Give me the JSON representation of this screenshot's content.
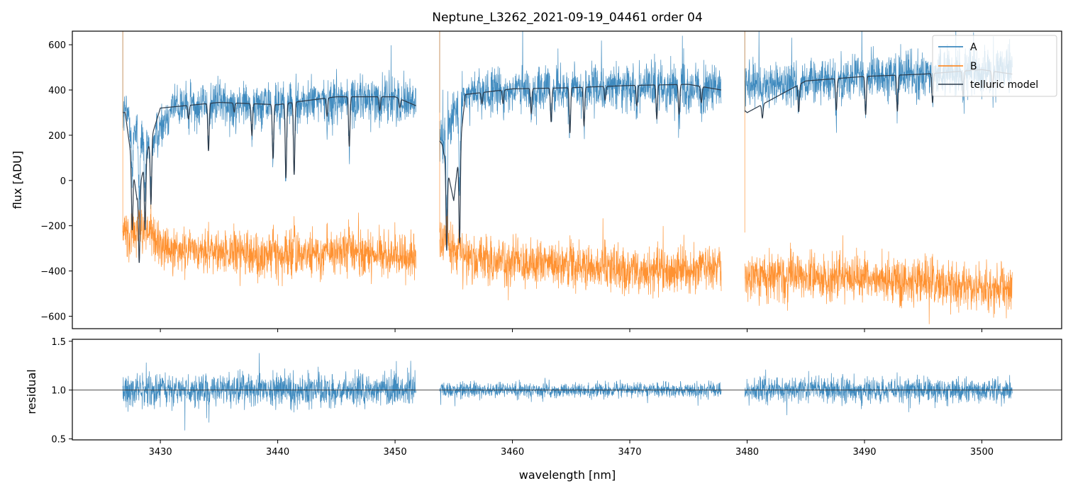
{
  "chart_data": [
    {
      "panel": "top",
      "type": "line",
      "title": "Neptune_L3262_2021-09-19_04461  order 04",
      "xlabel": "",
      "ylabel": "flux [ADU]",
      "xlim": [
        3422.5,
        3506.8
      ],
      "ylim": [
        -655,
        660
      ],
      "yticks": [
        -600,
        -400,
        -200,
        0,
        200,
        400,
        600
      ],
      "grid": false,
      "legend": {
        "placement": "top-right",
        "entries": [
          "A",
          "B",
          "telluric model"
        ]
      },
      "segments": [
        [
          3426.8,
          3451.8
        ],
        [
          3453.8,
          3477.8
        ],
        [
          3479.8,
          3502.6
        ]
      ],
      "series": [
        {
          "name": "A",
          "color": "#1f77b4",
          "x": [
            3427,
            3429,
            3431,
            3435,
            3440,
            3445,
            3450,
            3451.8,
            3454,
            3456,
            3460,
            3465,
            3470,
            3475,
            3477.8,
            3480,
            3485,
            3490,
            3495,
            3500,
            3502.6
          ],
          "y": [
            300,
            140,
            330,
            345,
            330,
            360,
            360,
            350,
            180,
            380,
            400,
            400,
            420,
            410,
            400,
            410,
            440,
            460,
            470,
            480,
            480
          ],
          "noise_amplitude": 160
        },
        {
          "name": "B",
          "color": "#ff7f0e",
          "x": [
            3427,
            3429,
            3431,
            3435,
            3440,
            3445,
            3450,
            3451.8,
            3454,
            3456,
            3460,
            3465,
            3470,
            3475,
            3477.8,
            3480,
            3485,
            3490,
            3495,
            3500,
            3502.6
          ],
          "y": [
            -230,
            -250,
            -310,
            -320,
            -340,
            -320,
            -330,
            -330,
            -250,
            -350,
            -360,
            -380,
            -400,
            -400,
            -380,
            -420,
            -430,
            -440,
            -450,
            -480,
            -480
          ],
          "noise_amplitude": 160
        },
        {
          "name": "telluric model",
          "color": "#2b3a4a",
          "x": [
            3427,
            3428,
            3429,
            3430,
            3435,
            3440,
            3442,
            3445,
            3450,
            3451.8,
            3454,
            3455,
            3456,
            3460,
            3465,
            3470,
            3475,
            3477.8,
            3480,
            3485,
            3490,
            3495,
            3500,
            3502.6
          ],
          "y": [
            300,
            -80,
            150,
            320,
            345,
            335,
            350,
            370,
            370,
            330,
            160,
            -90,
            380,
            405,
            410,
            420,
            425,
            400,
            300,
            440,
            460,
            470,
            490,
            470
          ],
          "absorption_lines": [
            3427.6,
            3428.2,
            3428.7,
            3429.2,
            3432.4,
            3434.1,
            3436.3,
            3437.8,
            3439.6,
            3440.7,
            3441.4,
            3444.2,
            3446.1,
            3448.7,
            3450.4,
            3454.4,
            3455.5,
            3457.4,
            3459.2,
            3461.6,
            3463.3,
            3464.9,
            3466.1,
            3467.9,
            3470.6,
            3472.3,
            3474.2,
            3476.1,
            3481.3,
            3484.4,
            3487.6,
            3490.1,
            3492.8,
            3495.8,
            3498.4,
            3500.9
          ],
          "absorption_depths": [
            290,
            330,
            300,
            290,
            60,
            210,
            40,
            140,
            240,
            330,
            320,
            80,
            220,
            60,
            40,
            370,
            420,
            50,
            60,
            110,
            150,
            200,
            170,
            60,
            90,
            150,
            130,
            70,
            60,
            120,
            140,
            170,
            160,
            130,
            110,
            70
          ]
        }
      ]
    },
    {
      "panel": "bottom",
      "type": "line",
      "title": "",
      "xlabel": "wavelength [nm]",
      "ylabel": "residual",
      "xlim": [
        3422.5,
        3506.8
      ],
      "ylim": [
        0.49,
        1.52
      ],
      "xticks": [
        3430,
        3440,
        3450,
        3460,
        3470,
        3480,
        3490,
        3500
      ],
      "yticks": [
        0.5,
        1.0,
        1.5
      ],
      "reference_line": 1.0,
      "grid": false,
      "series": [
        {
          "name": "",
          "color": "#1f77b4",
          "segments": [
            [
              3426.8,
              3451.8
            ],
            [
              3453.8,
              3477.8
            ],
            [
              3479.8,
              3502.6
            ]
          ],
          "center": 1.0,
          "noise_amplitude_per_segment": [
            0.26,
            0.12,
            0.2
          ]
        }
      ]
    }
  ]
}
